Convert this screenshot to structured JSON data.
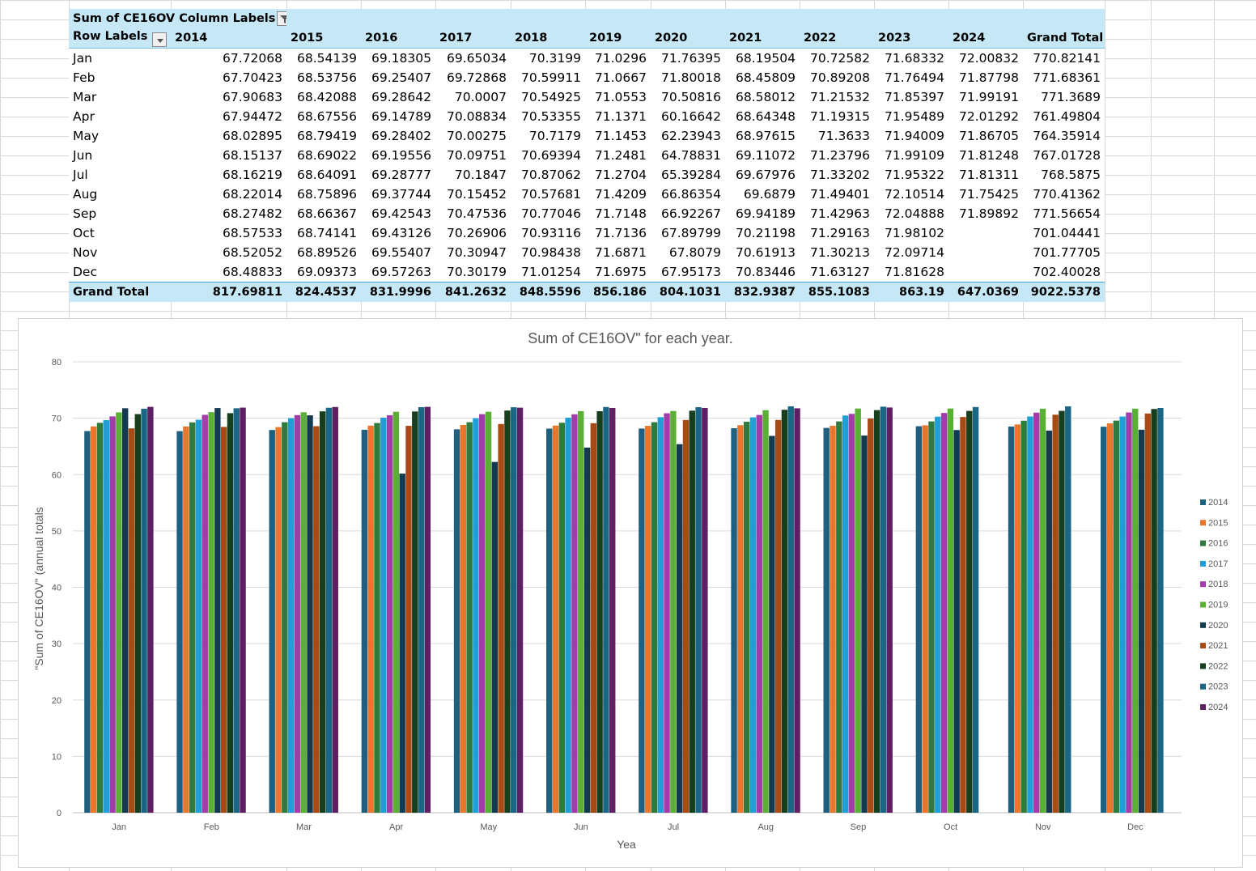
{
  "pivot": {
    "corner_label": "Sum of CE16OV",
    "column_labels": "Column Labels",
    "row_labels": "Row Labels",
    "years": [
      "2014",
      "2015",
      "2016",
      "2017",
      "2018",
      "2019",
      "2020",
      "2021",
      "2022",
      "2023",
      "2024"
    ],
    "grand_total_label": "Grand Total",
    "rows": [
      {
        "month": "Jan",
        "values": [
          "67.72068",
          "68.54139",
          "69.18305",
          "69.65034",
          "70.3199",
          "71.0296",
          "71.76395",
          "68.19504",
          "70.72582",
          "71.68332",
          "72.00832"
        ],
        "total": "770.82141"
      },
      {
        "month": "Feb",
        "values": [
          "67.70423",
          "68.53756",
          "69.25407",
          "69.72868",
          "70.59911",
          "71.0667",
          "71.80018",
          "68.45809",
          "70.89208",
          "71.76494",
          "71.87798"
        ],
        "total": "771.68361"
      },
      {
        "month": "Mar",
        "values": [
          "67.90683",
          "68.42088",
          "69.28642",
          "70.0007",
          "70.54925",
          "71.0553",
          "70.50816",
          "68.58012",
          "71.21532",
          "71.85397",
          "71.99191"
        ],
        "total": "771.3689"
      },
      {
        "month": "Apr",
        "values": [
          "67.94472",
          "68.67556",
          "69.14789",
          "70.08834",
          "70.53355",
          "71.1371",
          "60.16642",
          "68.64348",
          "71.19315",
          "71.95489",
          "72.01292"
        ],
        "total": "761.49804"
      },
      {
        "month": "May",
        "values": [
          "68.02895",
          "68.79419",
          "69.28402",
          "70.00275",
          "70.7179",
          "71.1453",
          "62.23943",
          "68.97615",
          "71.3633",
          "71.94009",
          "71.86705"
        ],
        "total": "764.35914"
      },
      {
        "month": "Jun",
        "values": [
          "68.15137",
          "68.69022",
          "69.19556",
          "70.09751",
          "70.69394",
          "71.2481",
          "64.78831",
          "69.11072",
          "71.23796",
          "71.99109",
          "71.81248"
        ],
        "total": "767.01728"
      },
      {
        "month": "Jul",
        "values": [
          "68.16219",
          "68.64091",
          "69.28777",
          "70.1847",
          "70.87062",
          "71.2704",
          "65.39284",
          "69.67976",
          "71.33202",
          "71.95322",
          "71.81311"
        ],
        "total": "768.5875"
      },
      {
        "month": "Aug",
        "values": [
          "68.22014",
          "68.75896",
          "69.37744",
          "70.15452",
          "70.57681",
          "71.4209",
          "66.86354",
          "69.6879",
          "71.49401",
          "72.10514",
          "71.75425"
        ],
        "total": "770.41362"
      },
      {
        "month": "Sep",
        "values": [
          "68.27482",
          "68.66367",
          "69.42543",
          "70.47536",
          "70.77046",
          "71.7148",
          "66.92267",
          "69.94189",
          "71.42963",
          "72.04888",
          "71.89892"
        ],
        "total": "771.56654"
      },
      {
        "month": "Oct",
        "values": [
          "68.57533",
          "68.74141",
          "69.43126",
          "70.26906",
          "70.93116",
          "71.7136",
          "67.89799",
          "70.21198",
          "71.29163",
          "71.98102",
          ""
        ],
        "total": "701.04441"
      },
      {
        "month": "Nov",
        "values": [
          "68.52052",
          "68.89526",
          "69.55407",
          "70.30947",
          "70.98438",
          "71.6871",
          "67.8079",
          "70.61913",
          "71.30213",
          "72.09714",
          ""
        ],
        "total": "701.77705"
      },
      {
        "month": "Dec",
        "values": [
          "68.48833",
          "69.09373",
          "69.57263",
          "70.30179",
          "71.01254",
          "71.6975",
          "67.95173",
          "70.83446",
          "71.63127",
          "71.81628",
          ""
        ],
        "total": "702.40028"
      }
    ],
    "grand_totals": [
      "817.69811",
      "824.4537",
      "831.9996",
      "841.2632",
      "848.5596",
      "856.186",
      "804.1031",
      "832.9387",
      "855.1083",
      "863.19",
      "647.0369"
    ],
    "grand_total_all": "9022.5378"
  },
  "chart_data": {
    "type": "bar",
    "title": "Sum of CE16OV\" for each year.",
    "xlabel": "Yea",
    "ylabel": "\"Sum of CE16OV\" (annual totals",
    "ylim": [
      0,
      80
    ],
    "yticks": [
      0,
      10,
      20,
      30,
      40,
      50,
      60,
      70,
      80
    ],
    "grid": true,
    "legend": "right",
    "categories": [
      "Jan",
      "Feb",
      "Mar",
      "Apr",
      "May",
      "Jun",
      "Jul",
      "Aug",
      "Sep",
      "Oct",
      "Nov",
      "Dec"
    ],
    "series": [
      {
        "name": "2014",
        "color": "#1f5f7f",
        "values": [
          67.72068,
          67.70423,
          67.90683,
          67.94472,
          68.02895,
          68.15137,
          68.16219,
          68.22014,
          68.27482,
          68.57533,
          68.52052,
          68.48833
        ]
      },
      {
        "name": "2015",
        "color": "#e8762d",
        "values": [
          68.54139,
          68.53756,
          68.42088,
          68.67556,
          68.79419,
          68.69022,
          68.64091,
          68.75896,
          68.66367,
          68.74141,
          68.89526,
          69.09373
        ]
      },
      {
        "name": "2016",
        "color": "#2f7a3c",
        "values": [
          69.18305,
          69.25407,
          69.28642,
          69.14789,
          69.28402,
          69.19556,
          69.28777,
          69.37744,
          69.42543,
          69.43126,
          69.55407,
          69.57263
        ]
      },
      {
        "name": "2017",
        "color": "#1f9fd6",
        "values": [
          69.65034,
          69.72868,
          70.0007,
          70.08834,
          70.00275,
          70.09751,
          70.1847,
          70.15452,
          70.47536,
          70.26906,
          70.30947,
          70.30179
        ]
      },
      {
        "name": "2018",
        "color": "#a23ca8",
        "values": [
          70.3199,
          70.59911,
          70.54925,
          70.53355,
          70.7179,
          70.69394,
          70.87062,
          70.57681,
          70.77046,
          70.93116,
          70.98438,
          71.01254
        ]
      },
      {
        "name": "2019",
        "color": "#5ab034",
        "values": [
          71.0296,
          71.0667,
          71.0553,
          71.1371,
          71.1453,
          71.2481,
          71.2704,
          71.4209,
          71.7148,
          71.7136,
          71.6871,
          71.6975
        ]
      },
      {
        "name": "2020",
        "color": "#143a52",
        "values": [
          71.76395,
          71.80018,
          70.50816,
          60.16642,
          62.23943,
          64.78831,
          65.39284,
          66.86354,
          66.92267,
          67.89799,
          67.8079,
          67.95173
        ]
      },
      {
        "name": "2021",
        "color": "#a84a14",
        "values": [
          68.19504,
          68.45809,
          68.58012,
          68.64348,
          68.97615,
          69.11072,
          69.67976,
          69.6879,
          69.94189,
          70.21198,
          70.61913,
          70.83446
        ]
      },
      {
        "name": "2022",
        "color": "#173f1e",
        "values": [
          70.72582,
          70.89208,
          71.21532,
          71.19315,
          71.3633,
          71.23796,
          71.33202,
          71.49401,
          71.42963,
          71.29163,
          71.30213,
          71.63127
        ]
      },
      {
        "name": "2023",
        "color": "#1a6685",
        "values": [
          71.68332,
          71.76494,
          71.85397,
          71.95489,
          71.94009,
          71.99109,
          71.95322,
          72.10514,
          72.04888,
          71.98102,
          72.09714,
          71.81628
        ]
      },
      {
        "name": "2024",
        "color": "#5e1f63",
        "values": [
          72.00832,
          71.87798,
          71.99191,
          72.01292,
          71.86705,
          71.81248,
          71.81311,
          71.75425,
          71.89892,
          null,
          null,
          null
        ]
      }
    ]
  }
}
